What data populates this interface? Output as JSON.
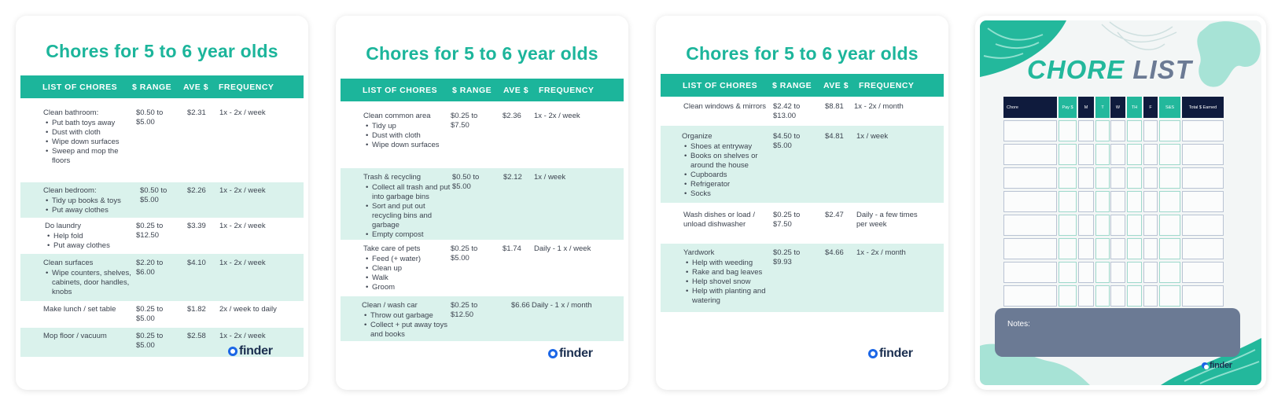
{
  "cards": [
    {
      "title": "Chores for 5 to 6 year olds",
      "headers": {
        "chores": "LIST OF CHORES",
        "range": "$ RANGE",
        "ave": "AVE $",
        "freq": "FREQUENCY"
      },
      "rows": [
        {
          "chore": "Clean bathroom:",
          "bullets": [
            "Put bath toys away",
            "Dust with cloth",
            "Wipe down surfaces",
            "Sweep and mop the floors"
          ],
          "range": "$0.50 to $5.00",
          "ave": "$2.31",
          "freq": "1x - 2x / week"
        },
        {
          "chore": "Clean bedroom:",
          "bullets": [
            "Tidy up books & toys",
            "Put away clothes"
          ],
          "range": "$0.50 to $5.00",
          "ave": "$2.26",
          "freq": "1x - 2x / week"
        },
        {
          "chore": "Do laundry",
          "bullets": [
            "Help fold",
            "Put away clothes"
          ],
          "range": "$0.25 to $12.50",
          "ave": "$3.39",
          "freq": "1x - 2x / week"
        },
        {
          "chore": "Clean surfaces",
          "bullets": [
            "Wipe counters, shelves, cabinets, door handles, knobs"
          ],
          "range": "$2.20 to $6.00",
          "ave": "$4.10",
          "freq": "1x - 2x / week"
        },
        {
          "chore": "Make lunch / set table",
          "bullets": [],
          "range": "$0.25 to $5.00",
          "ave": "$1.82",
          "freq": "2x / week to daily"
        },
        {
          "chore": "Mop floor / vacuum",
          "bullets": [],
          "range": "$0.25 to $5.00",
          "ave": "$2.58",
          "freq": "1x - 2x / week"
        }
      ],
      "logo": "finder"
    },
    {
      "title": "Chores for 5 to 6 year olds",
      "headers": {
        "chores": "LIST OF CHORES",
        "range": "$ RANGE",
        "ave": "AVE $",
        "freq": "FREQUENCY"
      },
      "rows": [
        {
          "chore": "Clean common area",
          "bullets": [
            "Tidy up",
            "Dust with cloth",
            "Wipe down surfaces"
          ],
          "range": "$0.25 to $7.50",
          "ave": "$2.36",
          "freq": "1x - 2x / week"
        },
        {
          "chore": "Trash & recycling",
          "bullets": [
            "Collect all trash and put into garbage bins",
            "Sort and put out recycling bins and garbage",
            "Empty compost"
          ],
          "range": "$0.50 to $5.00",
          "ave": "$2.12",
          "freq": "1x / week"
        },
        {
          "chore": "Take care of pets",
          "bullets": [
            "Feed (+ water)",
            "Clean up",
            "Walk",
            "Groom"
          ],
          "range": "$0.25 to $5.00",
          "ave": "$1.74",
          "freq": "Daily - 1 x / week"
        },
        {
          "chore": "Clean / wash car",
          "bullets": [
            "Throw out garbage",
            "Collect + put away toys and books"
          ],
          "range": "$0.25 to $12.50",
          "ave": "$6.66",
          "freq": "Daily - 1 x / month"
        }
      ],
      "logo": "finder"
    },
    {
      "title": "Chores for 5 to 6 year olds",
      "headers": {
        "chores": "LIST OF CHORES",
        "range": "$ RANGE",
        "ave": "AVE $",
        "freq": "FREQUENCY"
      },
      "rows": [
        {
          "chore": "Clean windows & mirrors",
          "bullets": [],
          "range": "$2.42 to $13.00",
          "ave": "$8.81",
          "freq": "1x - 2x / month"
        },
        {
          "chore": "Organize",
          "bullets": [
            "Shoes at entryway",
            "Books on shelves or around the house",
            "Cupboards",
            "Refrigerator",
            "Socks"
          ],
          "range": "$4.50 to $5.00",
          "ave": "$4.81",
          "freq": "1x / week"
        },
        {
          "chore": "Wash dishes or load / unload dishwasher",
          "bullets": [],
          "range": "$0.25 to $7.50",
          "ave": "$2.47",
          "freq": "Daily - a few times per week"
        },
        {
          "chore": "Yardwork",
          "bullets": [
            "Help with weeding",
            "Rake and bag leaves",
            "Help shovel snow",
            "Help with planting and watering"
          ],
          "range": "$0.25 to $9.93",
          "ave": "$4.66",
          "freq": "1x - 2x / month"
        }
      ],
      "logo": "finder"
    }
  ],
  "chore_list": {
    "title_a": "CHORE",
    "title_b": "LIST",
    "columns": [
      "Chore",
      "Pay $",
      "M",
      "T",
      "W",
      "TH",
      "F",
      "S&S",
      "Total $ Earned"
    ],
    "notes_label": "Notes:",
    "logo": "finder",
    "colors": {
      "teal": "#23b89c",
      "navy": "#0f1b3d",
      "slate": "#6b7a94"
    }
  }
}
